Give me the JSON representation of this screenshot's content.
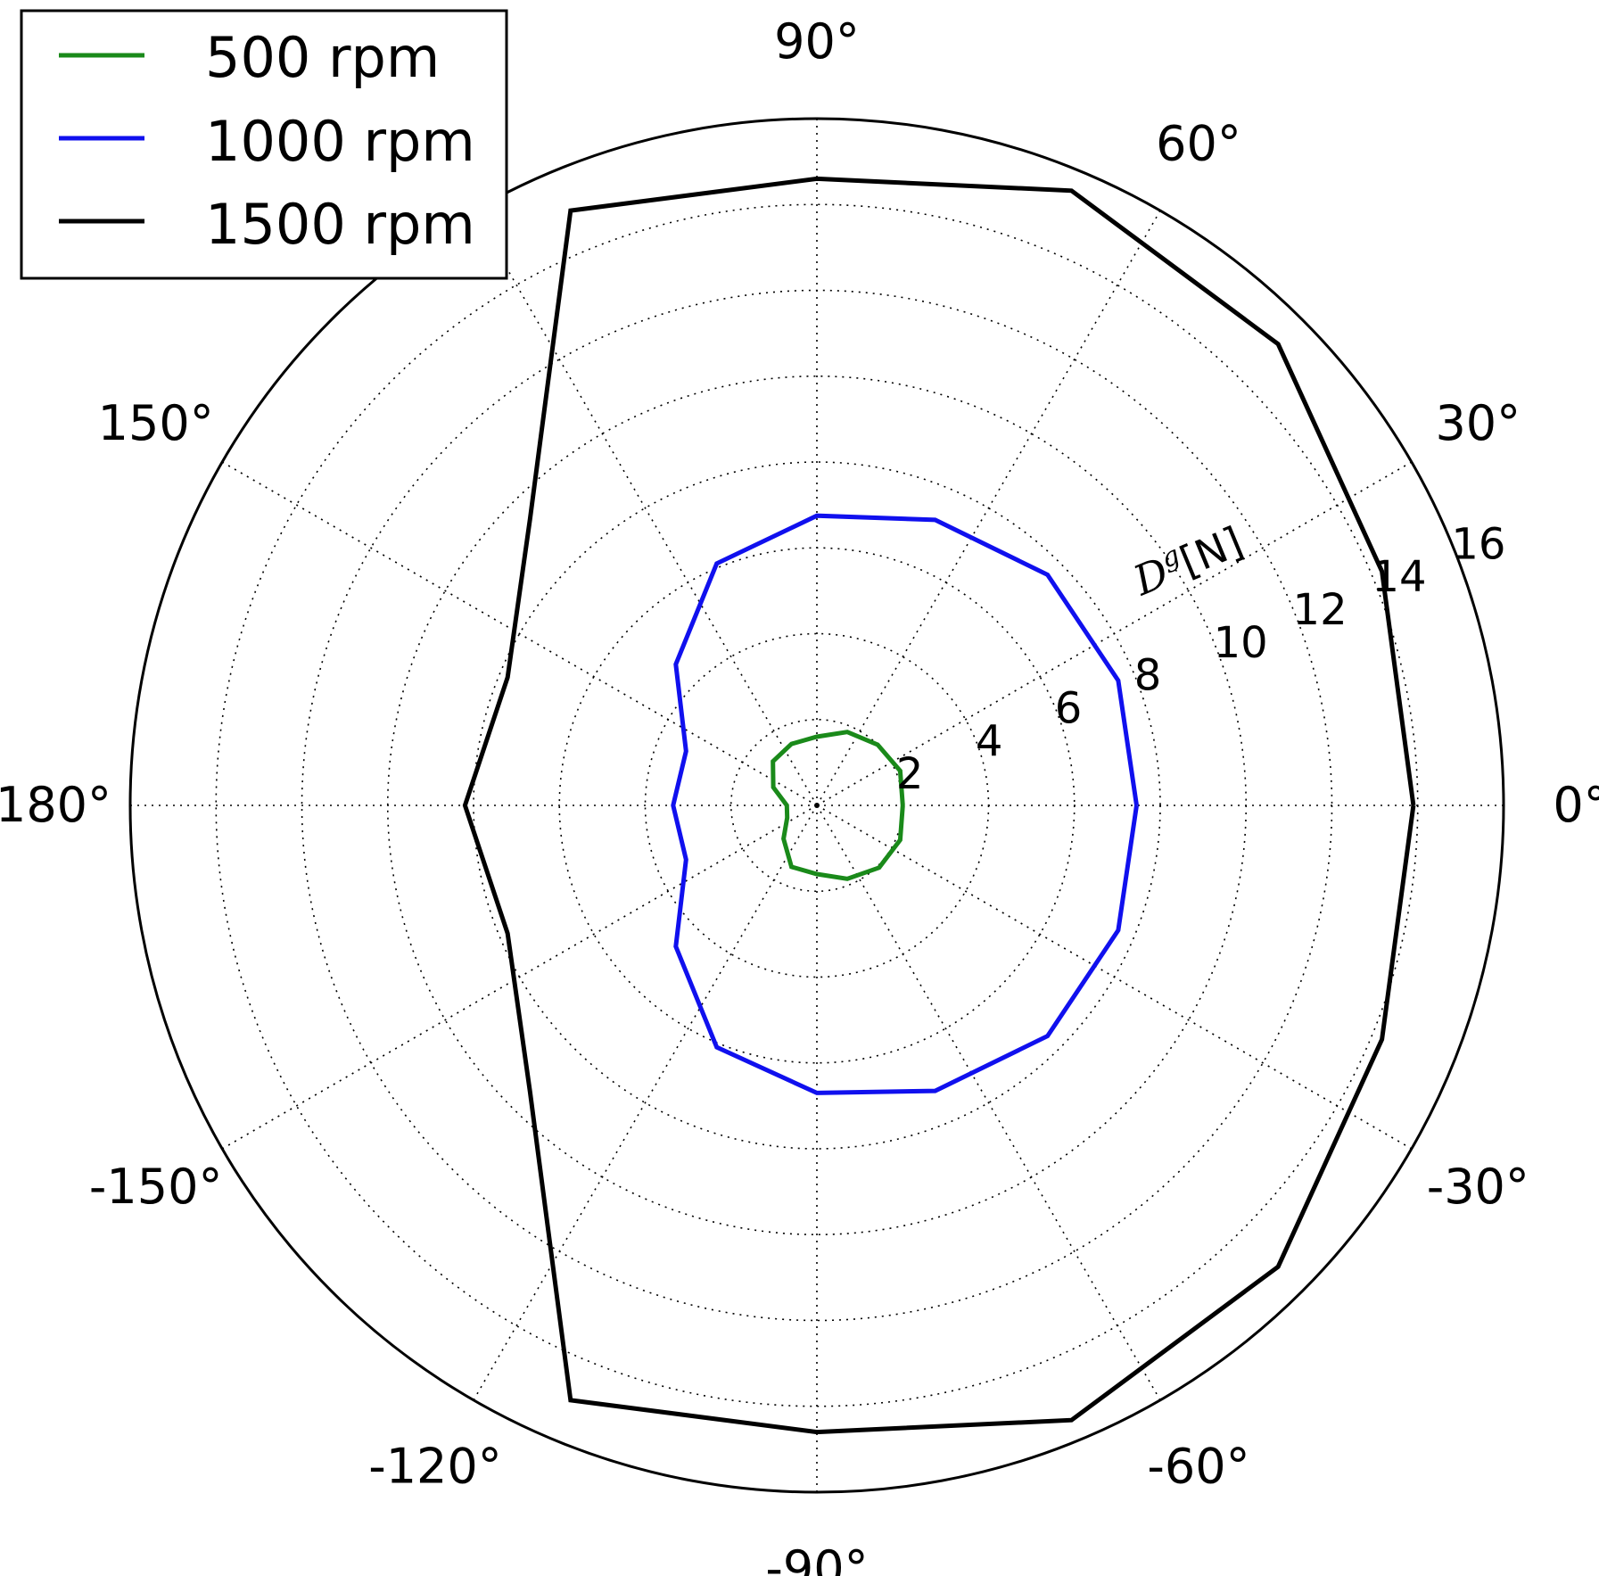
{
  "chart_data": {
    "type": "polar-line",
    "radial_axis": {
      "label": "D^g[N]",
      "label_main": "D",
      "label_sup": "g",
      "label_unit": "[N]",
      "ticks": [
        2,
        4,
        6,
        8,
        10,
        12,
        14,
        16
      ],
      "tick_labels": [
        "2",
        "4",
        "6",
        "8",
        "10",
        "12",
        "14",
        "16"
      ],
      "range": [
        0,
        16
      ],
      "tick_label_angle_deg": 22.5
    },
    "angular_axis": {
      "ticks_deg": [
        0,
        30,
        60,
        90,
        120,
        150,
        180,
        210,
        240,
        270,
        300,
        330
      ],
      "tick_labels": [
        "0°",
        "30°",
        "60°",
        "90°",
        "",
        "150°",
        "180°",
        "-150°",
        "-120°",
        "-90°",
        "-60°",
        "-30°"
      ]
    },
    "grid": true,
    "legend": {
      "placement": "top-left",
      "entries": [
        "500 rpm",
        "1000 rpm",
        "1500 rpm"
      ]
    },
    "series": [
      {
        "name": "500 rpm",
        "color": "#1a8a1a",
        "angles_deg": [
          0,
          22.5,
          45,
          67.5,
          90,
          112.5,
          135,
          157.5,
          180,
          202.5,
          225,
          247.5,
          270,
          292.5,
          315,
          337.5,
          360
        ],
        "values": [
          2.0,
          2.1,
          2.0,
          1.85,
          1.6,
          1.55,
          1.45,
          1.1,
          0.7,
          0.75,
          1.1,
          1.55,
          1.6,
          1.85,
          2.05,
          2.1,
          2.0
        ]
      },
      {
        "name": "1000 rpm",
        "color": "#1010ee",
        "angles_deg": [
          0,
          22.5,
          45,
          67.5,
          90,
          112.5,
          135,
          157.5,
          180,
          202.5,
          225,
          247.5,
          270,
          292.5,
          315,
          337.5,
          360
        ],
        "values": [
          7.45,
          7.6,
          7.6,
          7.2,
          6.75,
          6.1,
          4.65,
          3.3,
          3.35,
          3.3,
          4.65,
          6.1,
          6.7,
          7.2,
          7.6,
          7.6,
          7.45
        ]
      },
      {
        "name": "1500 rpm",
        "color": "#000000",
        "angles_deg": [
          0,
          22.5,
          45,
          67.5,
          90,
          112.5,
          135,
          157.5,
          180,
          202.5,
          225,
          247.5,
          270,
          292.5,
          315,
          337.5,
          360
        ],
        "values": [
          13.9,
          14.25,
          15.2,
          15.5,
          14.6,
          15.0,
          9.45,
          7.8,
          8.2,
          7.8,
          9.45,
          15.0,
          14.6,
          15.5,
          15.2,
          14.25,
          13.9
        ]
      }
    ]
  }
}
